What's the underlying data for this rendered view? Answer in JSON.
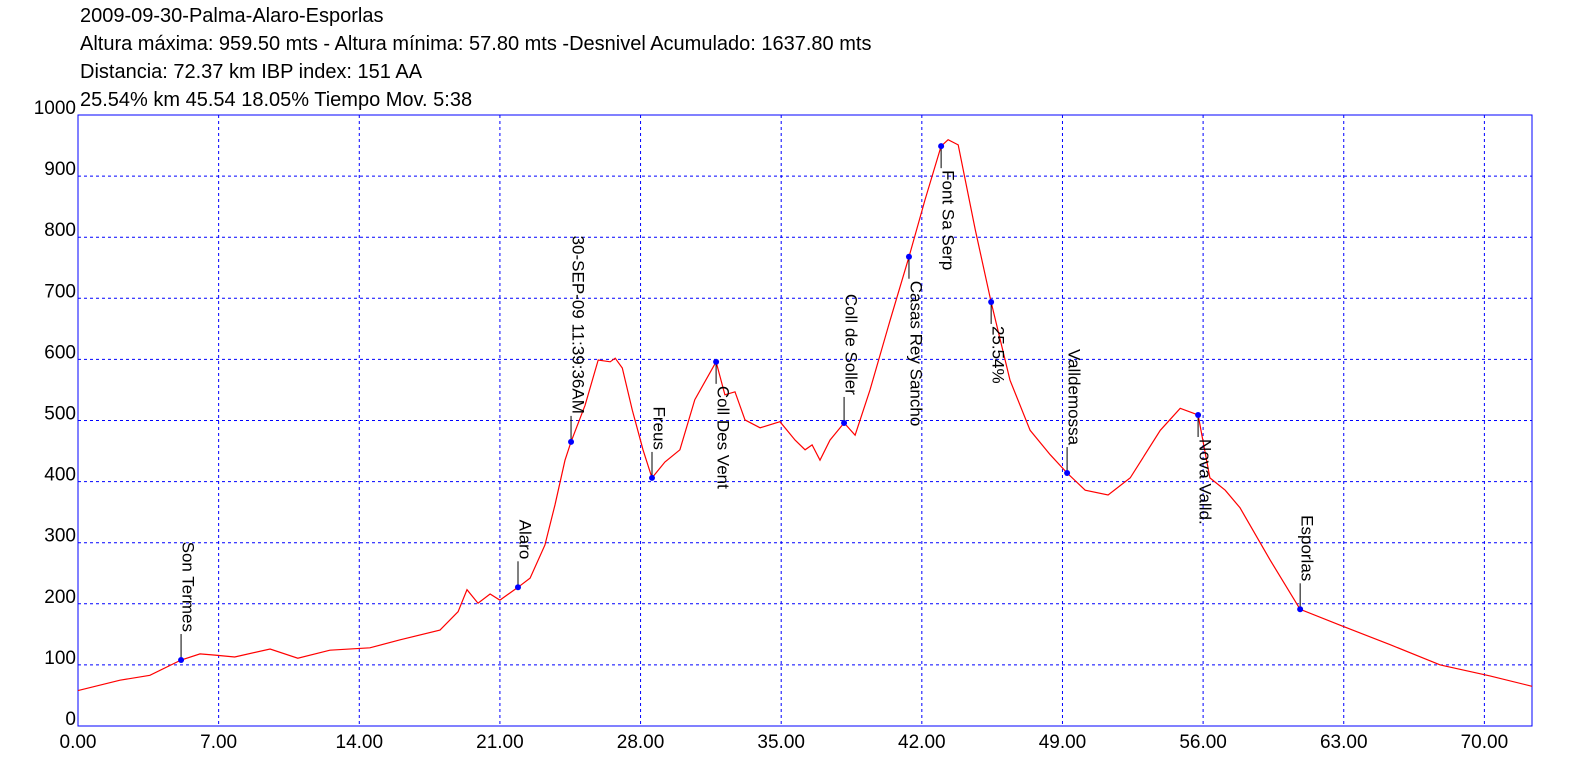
{
  "chart_data": {
    "type": "line",
    "title": "2009-09-30-Palma-Alaro-Esporlas",
    "subtitle": [
      "Altura máxima: 959.50 mts - Altura mínima: 57.80 mts -Desnivel Acumulado: 1637.80 mts",
      "Distancia: 72.37 km IBP index: 151 AA",
      "25.54% km 45.54  18.05%  Tiempo Mov. 5:38"
    ],
    "color": "#ff0000",
    "grid": true,
    "grid_color": "#0000ff",
    "x": [
      0,
      2.09,
      3.58,
      5.13,
      6.07,
      6.82,
      7.8,
      9.56,
      10.94,
      12.54,
      14.53,
      16.03,
      18.02,
      18.92,
      19.36,
      19.91,
      20.51,
      21.0,
      21.9,
      22.5,
      23.24,
      23.74,
      24.24,
      24.54,
      25.24,
      25.89,
      26.49,
      26.74,
      27.09,
      27.59,
      28.12,
      28.57,
      29.21,
      29.96,
      30.7,
      31.76,
      32.2,
      32.7,
      33.2,
      33.95,
      34.94,
      35.69,
      36.19,
      36.54,
      36.93,
      37.43,
      38.13,
      38.68,
      39.42,
      40.42,
      41.36,
      42.16,
      42.96,
      43.31,
      43.81,
      44.66,
      45.45,
      46.39,
      47.39,
      48.39,
      49.23,
      50.13,
      51.27,
      52.37,
      53.87,
      54.86,
      55.75,
      56.34,
      57.1,
      57.84,
      59.33,
      60.83,
      62.82,
      65.31,
      67.8,
      70.28,
      72.37
    ],
    "values": [
      58,
      75,
      83,
      108,
      118,
      116,
      113,
      126,
      111,
      124,
      128,
      141,
      157,
      187,
      223,
      201,
      216,
      206,
      227,
      242,
      296,
      362,
      435,
      465,
      525,
      599,
      596,
      602,
      586,
      517,
      452,
      406,
      432,
      452,
      534,
      596,
      542,
      547,
      501,
      488,
      498,
      468,
      452,
      460,
      435,
      468,
      496,
      476,
      550,
      664,
      768,
      861,
      949,
      959.5,
      951,
      812,
      694,
      566,
      484,
      444,
      414,
      386,
      378,
      406,
      484,
      520,
      509,
      406,
      386,
      357,
      272,
      191,
      165,
      133,
      100,
      82,
      65
    ],
    "annotations": [
      {
        "label": "Son Termes",
        "x": 5.13,
        "y": 108,
        "placement": "above"
      },
      {
        "label": "Alaro",
        "x": 21.9,
        "y": 227,
        "placement": "above"
      },
      {
        "label": "30-SEP-09 11:39:36AM",
        "x": 24.54,
        "y": 465,
        "placement": "above"
      },
      {
        "label": "Freus",
        "x": 28.57,
        "y": 406,
        "placement": "above"
      },
      {
        "label": "Coll Des Vent",
        "x": 31.76,
        "y": 596,
        "placement": "below"
      },
      {
        "label": "Coll de Soller",
        "x": 38.13,
        "y": 496,
        "placement": "above"
      },
      {
        "label": "Casas Rey Sancho",
        "x": 41.36,
        "y": 768,
        "placement": "below"
      },
      {
        "label": "Font Sa Serp",
        "x": 42.96,
        "y": 949,
        "placement": "below"
      },
      {
        "label": "25.54%",
        "x": 45.45,
        "y": 694,
        "placement": "below"
      },
      {
        "label": "Valldemossa",
        "x": 49.23,
        "y": 414,
        "placement": "above"
      },
      {
        "label": "Nova Valld.",
        "x": 55.75,
        "y": 509,
        "placement": "below"
      },
      {
        "label": "Esporlas",
        "x": 60.83,
        "y": 191,
        "placement": "above"
      }
    ],
    "xlim": [
      0,
      72.37
    ],
    "ylim": [
      0,
      1000
    ],
    "xticks": [
      {
        "value": 0,
        "label": "0.00"
      },
      {
        "value": 7,
        "label": "7.00"
      },
      {
        "value": 14,
        "label": "14.00"
      },
      {
        "value": 21,
        "label": "21.00"
      },
      {
        "value": 28,
        "label": "28.00"
      },
      {
        "value": 35,
        "label": "35.00"
      },
      {
        "value": 42,
        "label": "42.00"
      },
      {
        "value": 49,
        "label": "49.00"
      },
      {
        "value": 56,
        "label": "56.00"
      },
      {
        "value": 63,
        "label": "63.00"
      },
      {
        "value": 70,
        "label": "70.00"
      }
    ],
    "yticks": [
      0,
      100,
      200,
      300,
      400,
      500,
      600,
      700,
      800,
      900,
      1000
    ]
  }
}
